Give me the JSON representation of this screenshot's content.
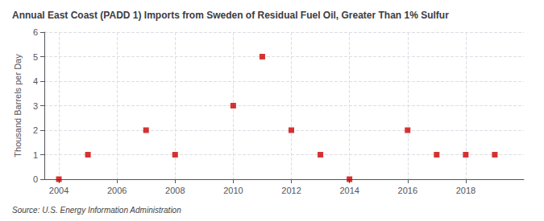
{
  "chart_data": {
    "type": "scatter",
    "title": "Annual East Coast (PADD 1) Imports from Sweden of Residual Fuel Oil, Greater Than 1% Sulfur",
    "ylabel": "Thousand Barrels per Day",
    "source": "Source: U.S. Energy Information Administration",
    "x": [
      2004,
      2005,
      2007,
      2008,
      2010,
      2011,
      2012,
      2013,
      2014,
      2016,
      2017,
      2018,
      2019
    ],
    "values": [
      0,
      1,
      2,
      1,
      3,
      5,
      2,
      1,
      0,
      2,
      1,
      1,
      1
    ],
    "color": "#cc0000",
    "marker": "square",
    "xlim": [
      2003.5,
      2020
    ],
    "ylim": [
      0,
      6
    ],
    "xticks": [
      2004,
      2006,
      2008,
      2010,
      2012,
      2014,
      2016,
      2018
    ],
    "yticks": [
      0,
      1,
      2,
      3,
      4,
      5,
      6
    ],
    "grid": true
  }
}
